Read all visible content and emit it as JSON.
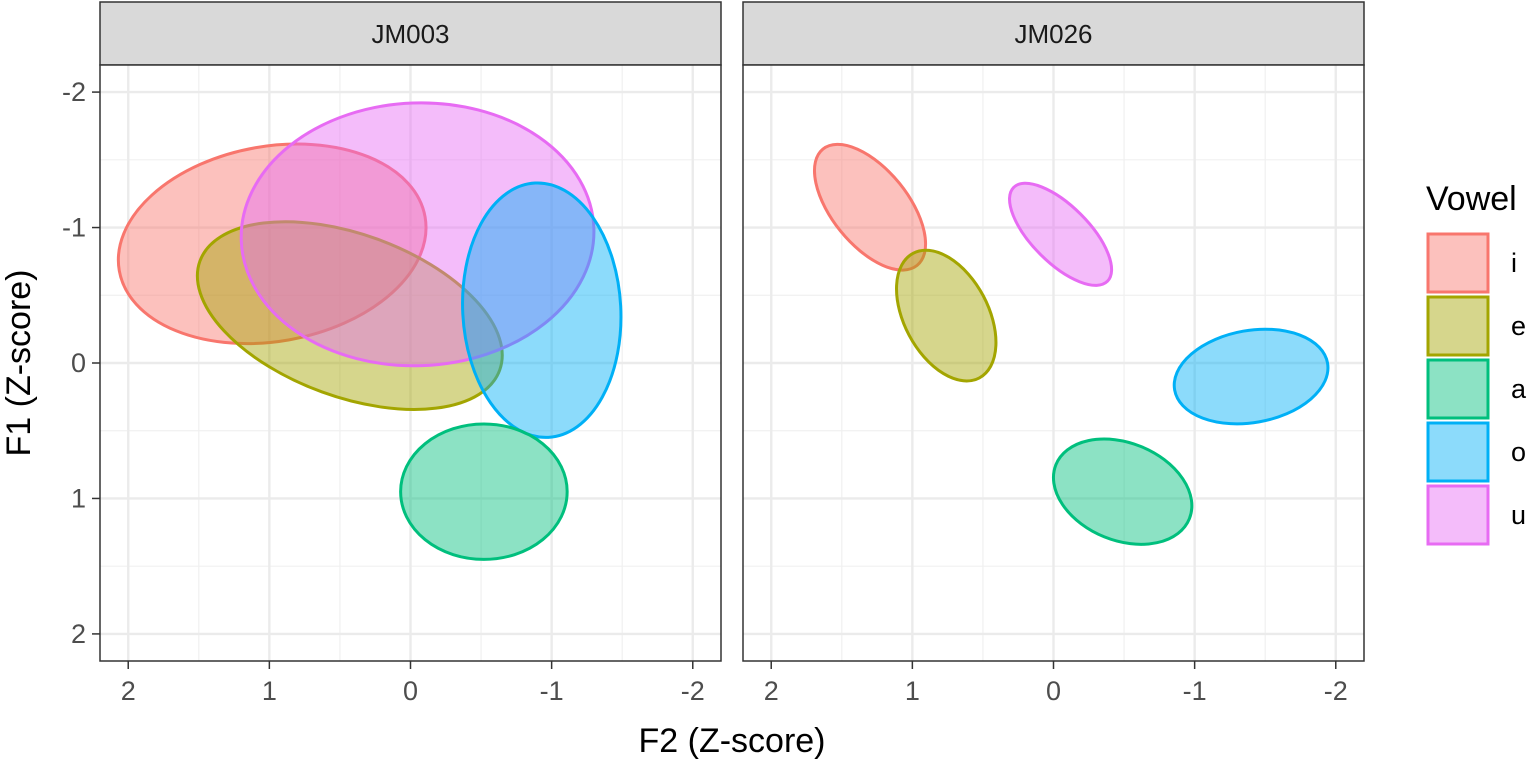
{
  "chart_data": {
    "type": "scatter",
    "subtype": "ellipse",
    "xlabel": "F2 (Z-score)",
    "ylabel": "F1 (Z-score)",
    "xlim": [
      2.2,
      -2.2
    ],
    "ylim": [
      -2.2,
      2.2
    ],
    "x_reversed": true,
    "y_reversed": true,
    "xticks": [
      2,
      1,
      0,
      -1,
      -2
    ],
    "xtick_labels": [
      "2",
      "1",
      "0",
      "-1",
      "-2"
    ],
    "yticks": [
      -2,
      -1,
      0,
      1,
      2
    ],
    "ytick_labels": [
      "-2",
      "-1",
      "0",
      "1",
      "2"
    ],
    "grid": true,
    "legend": {
      "title": "Vowel",
      "position": "right",
      "entries": [
        {
          "label": "i",
          "color": "#F8766D"
        },
        {
          "label": "e",
          "color": "#A3A500"
        },
        {
          "label": "a",
          "color": "#00BF7D"
        },
        {
          "label": "o",
          "color": "#00B0F6"
        },
        {
          "label": "u",
          "color": "#E76BF3"
        }
      ]
    },
    "panels": [
      {
        "title": "JM003",
        "series": [
          {
            "name": "i",
            "center": [
              0.98,
              -0.88
            ],
            "rx": 1.1,
            "ry": 0.72,
            "angle": -10
          },
          {
            "name": "e",
            "center": [
              0.43,
              -0.35
            ],
            "rx": 1.13,
            "ry": 0.6,
            "angle": 20
          },
          {
            "name": "u",
            "center": [
              -0.05,
              -0.95
            ],
            "rx": 1.25,
            "ry": 0.97,
            "angle": -2
          },
          {
            "name": "o",
            "center": [
              -0.93,
              -0.39
            ],
            "rx": 0.56,
            "ry": 0.94,
            "angle": -3
          },
          {
            "name": "a",
            "center": [
              -0.52,
              0.95
            ],
            "rx": 0.59,
            "ry": 0.5,
            "angle": 0
          }
        ]
      },
      {
        "title": "JM026",
        "series": [
          {
            "name": "i",
            "center": [
              1.3,
              -1.15
            ],
            "rx": 0.53,
            "ry": 0.28,
            "angle": 51
          },
          {
            "name": "e",
            "center": [
              0.76,
              -0.35
            ],
            "rx": 0.5,
            "ry": 0.31,
            "angle": 62
          },
          {
            "name": "u",
            "center": [
              -0.05,
              -0.95
            ],
            "rx": 0.47,
            "ry": 0.21,
            "angle": 45
          },
          {
            "name": "o",
            "center": [
              -1.4,
              0.1
            ],
            "rx": 0.55,
            "ry": 0.34,
            "angle": -10
          },
          {
            "name": "a",
            "center": [
              -0.49,
              0.95
            ],
            "rx": 0.51,
            "ry": 0.36,
            "angle": 22
          }
        ]
      }
    ]
  }
}
